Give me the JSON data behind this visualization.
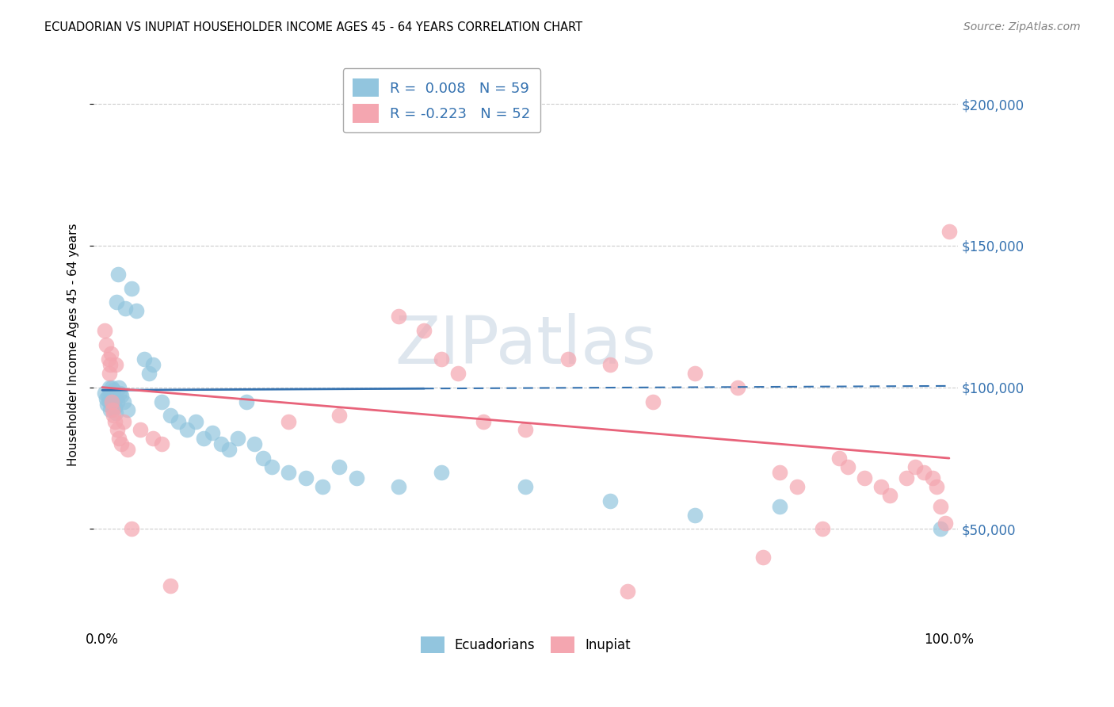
{
  "title": "ECUADORIAN VS INUPIAT HOUSEHOLDER INCOME AGES 45 - 64 YEARS CORRELATION CHART",
  "source": "Source: ZipAtlas.com",
  "ylabel": "Householder Income Ages 45 - 64 years",
  "xlim": [
    -1,
    101
  ],
  "ylim": [
    15000,
    215000
  ],
  "yticks": [
    50000,
    100000,
    150000,
    200000
  ],
  "ytick_labels": [
    "$50,000",
    "$100,000",
    "$150,000",
    "$200,000"
  ],
  "xticks": [
    0,
    100
  ],
  "xtick_labels": [
    "0.0%",
    "100.0%"
  ],
  "legend_label1": "R =  0.008   N = 59",
  "legend_label2": "R = -0.223   N = 52",
  "blue_scatter_color": "#92c5de",
  "pink_scatter_color": "#f4a6b0",
  "blue_line_color": "#3572b0",
  "pink_line_color": "#e8637a",
  "grid_color": "#cccccc",
  "watermark_text": "ZIPatlas",
  "watermark_color": "#d0dce8",
  "blue_x": [
    0.3,
    0.5,
    0.6,
    0.7,
    0.8,
    0.8,
    0.9,
    1.0,
    1.0,
    1.1,
    1.1,
    1.2,
    1.2,
    1.3,
    1.3,
    1.4,
    1.5,
    1.5,
    1.6,
    1.7,
    1.8,
    1.9,
    2.0,
    2.1,
    2.2,
    2.5,
    2.7,
    3.0,
    3.5,
    4.0,
    5.0,
    5.5,
    6.0,
    7.0,
    8.0,
    9.0,
    10.0,
    11.0,
    12.0,
    13.0,
    14.0,
    15.0,
    16.0,
    17.0,
    18.0,
    19.0,
    20.0,
    22.0,
    24.0,
    26.0,
    28.0,
    30.0,
    35.0,
    40.0,
    50.0,
    60.0,
    70.0,
    80.0,
    99.0
  ],
  "blue_y": [
    98000,
    96000,
    94000,
    97000,
    100000,
    95000,
    92000,
    98000,
    96000,
    100000,
    97000,
    95000,
    93000,
    99000,
    97000,
    94000,
    96000,
    93000,
    91000,
    130000,
    95000,
    140000,
    100000,
    98000,
    97000,
    95000,
    128000,
    92000,
    135000,
    127000,
    110000,
    105000,
    108000,
    95000,
    90000,
    88000,
    85000,
    88000,
    82000,
    84000,
    80000,
    78000,
    82000,
    95000,
    80000,
    75000,
    72000,
    70000,
    68000,
    65000,
    72000,
    68000,
    65000,
    70000,
    65000,
    60000,
    55000,
    58000,
    50000
  ],
  "pink_x": [
    0.3,
    0.5,
    0.7,
    0.8,
    0.9,
    1.0,
    1.1,
    1.2,
    1.3,
    1.5,
    1.6,
    1.8,
    2.0,
    2.2,
    2.5,
    3.0,
    3.5,
    4.5,
    6.0,
    7.0,
    8.0,
    22.0,
    28.0,
    35.0,
    38.0,
    40.0,
    42.0,
    45.0,
    50.0,
    55.0,
    60.0,
    62.0,
    65.0,
    70.0,
    75.0,
    78.0,
    80.0,
    82.0,
    85.0,
    87.0,
    88.0,
    90.0,
    92.0,
    93.0,
    95.0,
    96.0,
    97.0,
    98.0,
    98.5,
    99.0,
    99.5,
    100.0
  ],
  "pink_y": [
    120000,
    115000,
    110000,
    105000,
    108000,
    112000,
    95000,
    92000,
    90000,
    88000,
    108000,
    85000,
    82000,
    80000,
    88000,
    78000,
    50000,
    85000,
    82000,
    80000,
    30000,
    88000,
    90000,
    125000,
    120000,
    110000,
    105000,
    88000,
    85000,
    110000,
    108000,
    28000,
    95000,
    105000,
    100000,
    40000,
    70000,
    65000,
    50000,
    75000,
    72000,
    68000,
    65000,
    62000,
    68000,
    72000,
    70000,
    68000,
    65000,
    58000,
    52000,
    155000
  ],
  "blue_line_x0": 0,
  "blue_line_y0": 99000,
  "blue_line_x1": 100,
  "blue_line_y1": 100500,
  "blue_line_solid_end": 38,
  "pink_line_x0": 0,
  "pink_line_y0": 100000,
  "pink_line_x1": 100,
  "pink_line_y1": 75000
}
